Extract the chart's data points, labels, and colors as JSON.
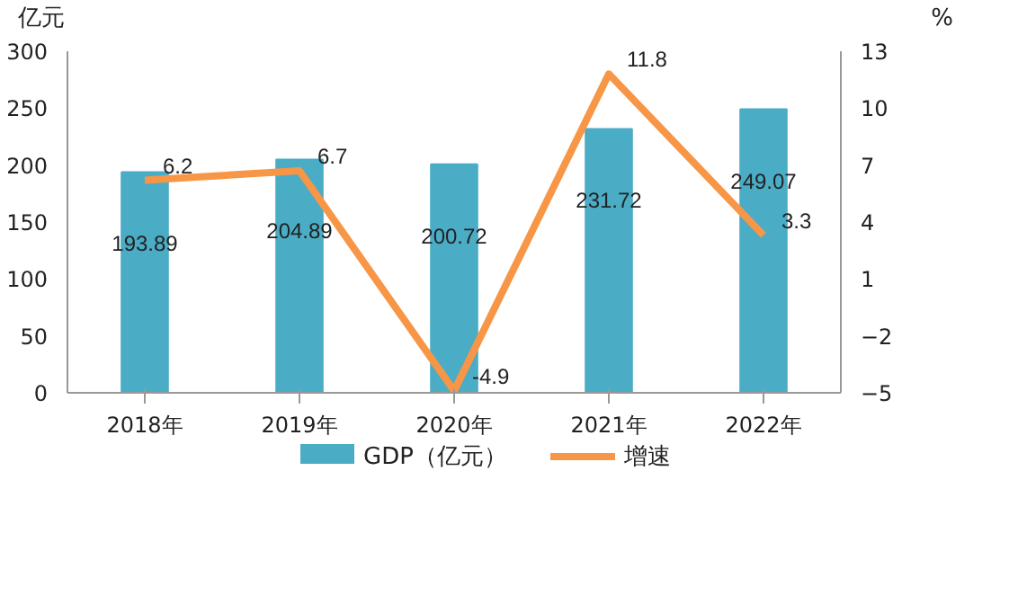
{
  "chart_data": {
    "type": "bar",
    "ylabel": "亿元",
    "y2label": "%",
    "categories": [
      "2018年",
      "2019年",
      "2020年",
      "2021年",
      "2022年"
    ],
    "series": [
      {
        "name": "GDP（亿元）",
        "color": "#4bacc6",
        "values": [
          193.89,
          204.89,
          200.72,
          231.72,
          249.07
        ]
      },
      {
        "name": "增速",
        "type": "line",
        "axis": "y2",
        "color": "#f79646",
        "values": [
          6.2,
          6.7,
          -4.9,
          11.8,
          3.3
        ]
      }
    ],
    "ylim": [
      0,
      300
    ],
    "yticks": [
      0,
      50,
      100,
      150,
      200,
      250,
      300
    ],
    "y2lim": [
      -5,
      13
    ],
    "y2ticks": [
      -5,
      -2,
      1,
      4,
      7,
      10,
      13
    ],
    "data_labels": true,
    "legend": "bottom",
    "grid": false,
    "marker": "none",
    "line_style": "solid"
  }
}
